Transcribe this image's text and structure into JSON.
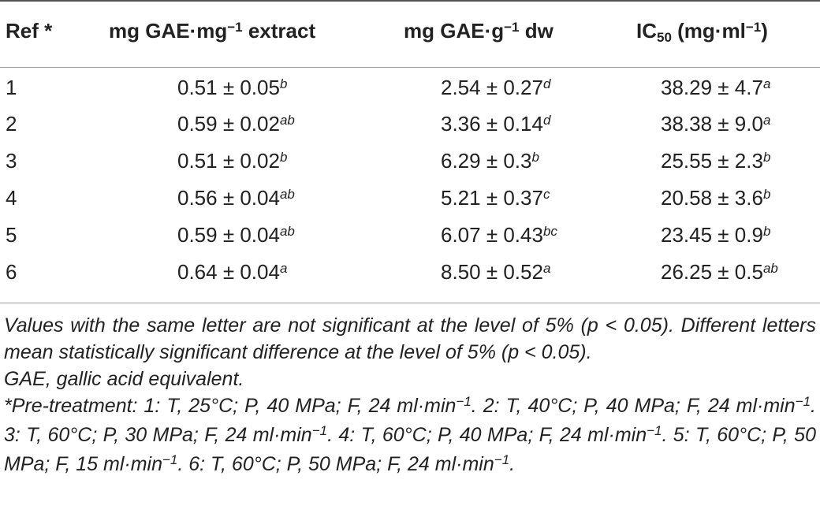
{
  "table": {
    "headers": {
      "ref": "Ref *",
      "col2_pre": "mg GAE·mg",
      "col2_sup": "−1",
      "col2_post": " extract",
      "col3_pre": "mg GAE·g",
      "col3_sup": "−1",
      "col3_post": " dw",
      "col4_pre": "IC",
      "col4_sub": "50",
      "col4_mid": " (mg·ml",
      "col4_sup": "−1",
      "col4_post": ")"
    },
    "rows": [
      {
        "ref": "1",
        "gae_extract": "0.51 ± 0.05",
        "gae_extract_sig": "b",
        "gae_dw": "2.54 ± 0.27",
        "gae_dw_sig": "d",
        "ic50": "38.29 ± 4.7",
        "ic50_sig": "a"
      },
      {
        "ref": "2",
        "gae_extract": "0.59 ± 0.02",
        "gae_extract_sig": "ab",
        "gae_dw": "3.36 ± 0.14",
        "gae_dw_sig": "d",
        "ic50": "38.38 ± 9.0",
        "ic50_sig": "a"
      },
      {
        "ref": "3",
        "gae_extract": "0.51 ± 0.02",
        "gae_extract_sig": "b",
        "gae_dw": "6.29 ± 0.3",
        "gae_dw_sig": "b",
        "ic50": "25.55 ± 2.3",
        "ic50_sig": "b"
      },
      {
        "ref": "4",
        "gae_extract": "0.56 ± 0.04",
        "gae_extract_sig": "ab",
        "gae_dw": "5.21 ± 0.37",
        "gae_dw_sig": "c",
        "ic50": "20.58 ± 3.6",
        "ic50_sig": "b"
      },
      {
        "ref": "5",
        "gae_extract": "0.59 ± 0.04",
        "gae_extract_sig": "ab",
        "gae_dw": "6.07 ± 0.43",
        "gae_dw_sig": "bc",
        "ic50": "23.45 ± 0.9",
        "ic50_sig": "b"
      },
      {
        "ref": "6",
        "gae_extract": "0.64 ± 0.04",
        "gae_extract_sig": "a",
        "gae_dw": "8.50 ± 0.52",
        "gae_dw_sig": "a",
        "ic50": "26.25 ± 0.5",
        "ic50_sig": "ab"
      }
    ]
  },
  "notes": {
    "significance": "Values with the same letter are not significant at the level of 5% (p < 0.05). Different letters mean statistically significant difference at the level of 5% (p < 0.05).",
    "abbreviation": "GAE, gallic acid equivalent.",
    "pretreatment": {
      "s1": "*Pre-treatment: 1: T, 25°C; P, 40 MPa; F, 24 ml·min",
      "s2": ". 2: T, 40°C; P, 40 MPa; F, 24 ml·min",
      "s3": ". 3: T, 60°C; P, 30 MPa; F, 24 ml·min",
      "s4": ". 4: T, 60°C; P, 40 MPa; F, 24 ml·min",
      "s5": ". 5: T, 60°C; P, 50 MPa; F, 15 ml·min",
      "s6": ". 6: T, 60°C; P, 50 MPa; F, 24 ml·min",
      "s7": ".",
      "unit_sup": "−1"
    }
  }
}
